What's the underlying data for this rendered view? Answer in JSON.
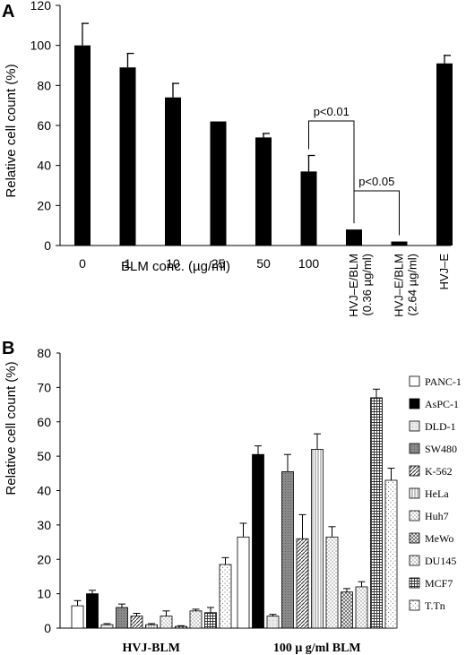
{
  "chart_data": [
    {
      "panel_label": "A",
      "type": "bar",
      "ylabel": "Relative cell count (%)",
      "xlabel": "BLM conc. (µg/ml)",
      "ylim": [
        0,
        120
      ],
      "yticks": [
        0,
        20,
        40,
        60,
        80,
        100,
        120
      ],
      "categories": [
        "0",
        "1",
        "10",
        "25",
        "50",
        "100",
        "HVJ–E/BLM\n(0.36 µg/ml)",
        "HVJ–E/BLM\n(2.64 µg/ml)",
        "HVJ–E"
      ],
      "values": [
        100,
        89,
        74,
        62,
        54,
        37,
        8,
        2,
        91
      ],
      "errors": [
        11,
        7,
        7,
        0,
        2,
        8,
        0,
        0,
        4
      ],
      "annotations": [
        {
          "text": "p<0.01",
          "from": 5,
          "to": 6
        },
        {
          "text": "p<0.05",
          "from": 6,
          "to": 7
        }
      ]
    },
    {
      "panel_label": "B",
      "type": "bar",
      "ylabel": "Relative cell count (%)",
      "ylim": [
        0,
        80
      ],
      "yticks": [
        0,
        10,
        20,
        30,
        40,
        50,
        60,
        70,
        80
      ],
      "categories": [
        "HVJ-BLM",
        "100 μ g/ml BLM"
      ],
      "legend_position": "right",
      "series": [
        {
          "name": "PANC-1",
          "values": [
            6.5,
            26.5
          ],
          "errors": [
            1.5,
            4
          ],
          "pattern": "white"
        },
        {
          "name": "AsPC-1",
          "values": [
            10,
            50.5
          ],
          "errors": [
            1,
            2.5
          ],
          "pattern": "black"
        },
        {
          "name": "DLD-1",
          "values": [
            1,
            3.5
          ],
          "errors": [
            0.3,
            0.5
          ],
          "pattern": "lightgray"
        },
        {
          "name": "SW480",
          "values": [
            6,
            45.5
          ],
          "errors": [
            1,
            5
          ],
          "pattern": "darkgray"
        },
        {
          "name": "K-562",
          "values": [
            3.5,
            26
          ],
          "errors": [
            0.8,
            7
          ],
          "pattern": "diag"
        },
        {
          "name": "HeLa",
          "values": [
            1,
            52
          ],
          "errors": [
            0.3,
            4.5
          ],
          "pattern": "vert"
        },
        {
          "name": "Huh7",
          "values": [
            3.5,
            26.5
          ],
          "errors": [
            1.5,
            3
          ],
          "pattern": "dots"
        },
        {
          "name": "MeWo",
          "values": [
            0.5,
            10.5
          ],
          "errors": [
            0.2,
            1
          ],
          "pattern": "cross"
        },
        {
          "name": "DU145",
          "values": [
            5,
            12
          ],
          "errors": [
            0.5,
            1.5
          ],
          "pattern": "dashes"
        },
        {
          "name": "MCF7",
          "values": [
            4.5,
            67
          ],
          "errors": [
            1.5,
            2.5
          ],
          "pattern": "grid"
        },
        {
          "name": "T.Tn",
          "values": [
            18.5,
            43
          ],
          "errors": [
            2,
            3.5
          ],
          "pattern": "sparse"
        }
      ]
    }
  ]
}
